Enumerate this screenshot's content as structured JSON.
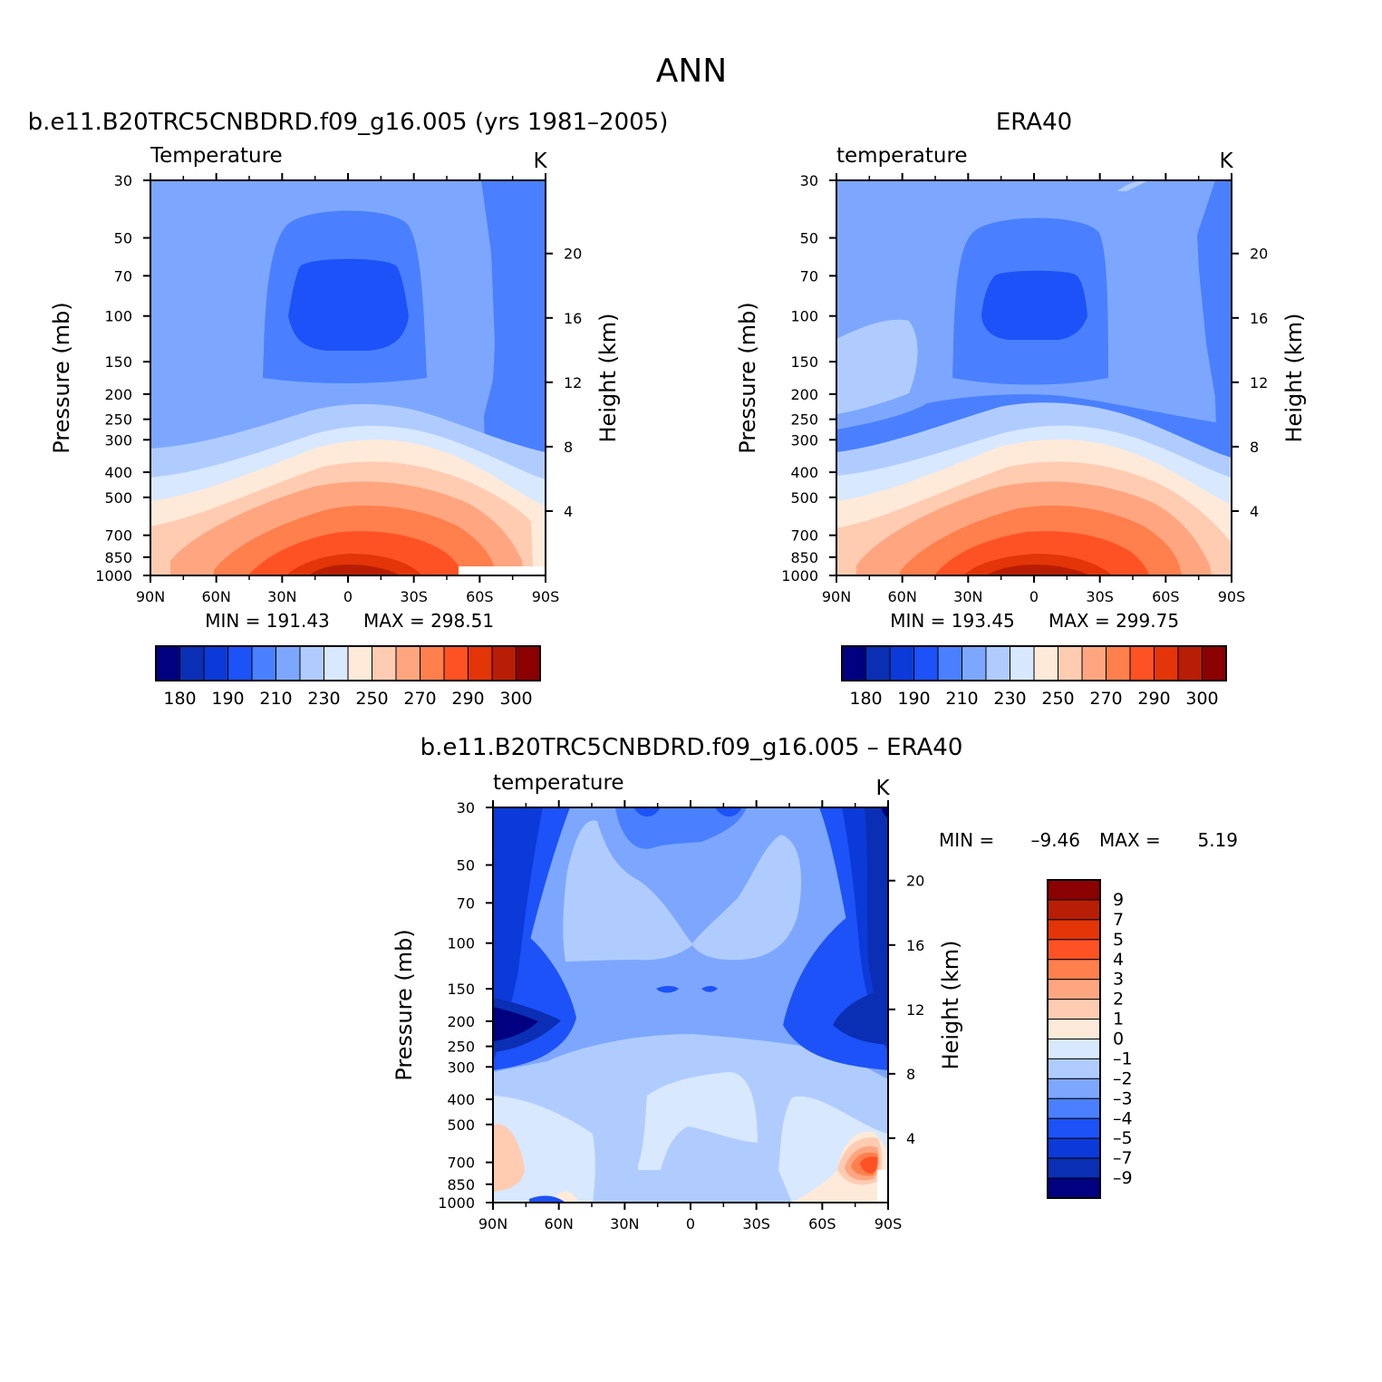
{
  "main_title": "ANN",
  "colors": {
    "abs_levels": [
      "#000080",
      "#0a2fb5",
      "#0c3ad8",
      "#1c52f8",
      "#4a80ff",
      "#7da7ff",
      "#b0ccff",
      "#d8e8ff",
      "#ffead9",
      "#ffccb2",
      "#ffa680",
      "#ff7f4d",
      "#ff5224",
      "#e33508",
      "#b81e05",
      "#8b0000"
    ],
    "diff_levels": [
      "#000080",
      "#0a2fb5",
      "#0c3ad8",
      "#1c52f8",
      "#4a80ff",
      "#7da7ff",
      "#b0ccff",
      "#d8e8ff",
      "#ffead9",
      "#ffccb2",
      "#ffa680",
      "#ff7f4d",
      "#ff5224",
      "#e33508",
      "#b81e05",
      "#8b0000"
    ]
  },
  "chart_data": [
    {
      "type": "heatmap",
      "title": "b.e11.B20TRC5CNBDRD.f09_g16.005 (yrs 1981–2005)",
      "variable": "Temperature",
      "units": "K",
      "xlabel": "",
      "ylabel": "Pressure (mb)",
      "ylabel_right": "Height (km)",
      "x_ticks": [
        "90N",
        "60N",
        "30N",
        "0",
        "30S",
        "60S",
        "90S"
      ],
      "y_ticks": [
        "30",
        "50",
        "70",
        "100",
        "150",
        "200",
        "250",
        "300",
        "400",
        "500",
        "700",
        "850",
        "1000"
      ],
      "height_ticks": [
        "4",
        "8",
        "12",
        "16",
        "20"
      ],
      "min_label": "MIN = 191.43",
      "max_label": "MAX = 298.51",
      "colorbar_labels": [
        "180",
        "190",
        "210",
        "230",
        "250",
        "270",
        "290",
        "300"
      ],
      "y_scale": "log",
      "ylim": [
        1000,
        30
      ]
    },
    {
      "type": "heatmap",
      "title": "ERA40",
      "variable": "temperature",
      "units": "K",
      "xlabel": "",
      "ylabel": "Pressure (mb)",
      "ylabel_right": "Height (km)",
      "x_ticks": [
        "90N",
        "60N",
        "30N",
        "0",
        "30S",
        "60S",
        "90S"
      ],
      "y_ticks": [
        "30",
        "50",
        "70",
        "100",
        "150",
        "200",
        "250",
        "300",
        "400",
        "500",
        "700",
        "850",
        "1000"
      ],
      "height_ticks": [
        "4",
        "8",
        "12",
        "16",
        "20"
      ],
      "min_label": "MIN = 193.45",
      "max_label": "MAX = 299.75",
      "colorbar_labels": [
        "180",
        "190",
        "210",
        "230",
        "250",
        "270",
        "290",
        "300"
      ],
      "y_scale": "log",
      "ylim": [
        1000,
        30
      ]
    },
    {
      "type": "heatmap",
      "title": "b.e11.B20TRC5CNBDRD.f09_g16.005 – ERA40",
      "variable": "temperature",
      "units": "K",
      "xlabel": "",
      "ylabel": "Pressure (mb)",
      "ylabel_right": "Height (km)",
      "x_ticks": [
        "90N",
        "60N",
        "30N",
        "0",
        "30S",
        "60S",
        "90S"
      ],
      "y_ticks": [
        "30",
        "50",
        "70",
        "100",
        "150",
        "200",
        "250",
        "300",
        "400",
        "500",
        "700",
        "850",
        "1000"
      ],
      "height_ticks": [
        "4",
        "8",
        "12",
        "16",
        "20"
      ],
      "min_label": "MIN =",
      "min_value": "–9.46",
      "max_label": "MAX =",
      "max_value": "5.19",
      "colorbar_labels": [
        "9",
        "7",
        "5",
        "4",
        "3",
        "2",
        "1",
        "0",
        "–1",
        "–2",
        "–3",
        "–4",
        "–5",
        "–7",
        "–9"
      ],
      "y_scale": "log",
      "ylim": [
        1000,
        30
      ]
    }
  ]
}
